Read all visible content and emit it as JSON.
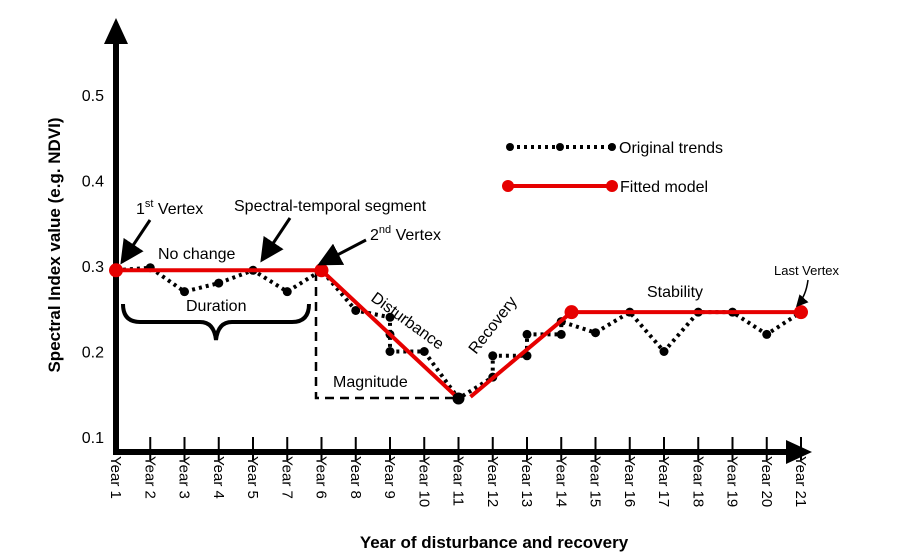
{
  "chart_data": {
    "type": "line",
    "title": "",
    "xlabel": "Year of disturbance and recovery",
    "ylabel": "Spectral Index value (e.g. NDVI)",
    "ylim": [
      0.1,
      0.55
    ],
    "yticks": [
      "0.1",
      "0.2",
      "0.3",
      "0.4",
      "0.5"
    ],
    "categories": [
      "Year 1",
      "Year 2",
      "Year 3",
      "Year 4",
      "Year 5",
      "Year 7",
      "Year 6",
      "Year 8",
      "Year 9",
      "Year 10",
      "Year 11",
      "Year 12",
      "Year 13",
      "Year 14",
      "Year 15",
      "Year 16",
      "Year 17",
      "Year 18",
      "Year 19",
      "Year 20",
      "Year 21"
    ],
    "legend": {
      "position": "top-right"
    },
    "series": [
      {
        "name": "Original trends",
        "color": "#000000",
        "style": "dotted",
        "points": [
          [
            0,
            0.295
          ],
          [
            1,
            0.298
          ],
          [
            2,
            0.27
          ],
          [
            3,
            0.28
          ],
          [
            4,
            0.295
          ],
          [
            5,
            0.27
          ],
          [
            6,
            0.295
          ],
          [
            7,
            0.248
          ],
          [
            8,
            0.24
          ],
          [
            8,
            0.22
          ],
          [
            8,
            0.2
          ],
          [
            9,
            0.2
          ],
          [
            10,
            0.145
          ],
          [
            11,
            0.17
          ],
          [
            11,
            0.195
          ],
          [
            12,
            0.195
          ],
          [
            12,
            0.22
          ],
          [
            13,
            0.22
          ],
          [
            13,
            0.235
          ],
          [
            14,
            0.222
          ],
          [
            15,
            0.246
          ],
          [
            16,
            0.2
          ],
          [
            17,
            0.246
          ],
          [
            18,
            0.246
          ],
          [
            19,
            0.22
          ],
          [
            20,
            0.246
          ]
        ]
      },
      {
        "name": "Fitted model",
        "color": "#e60000",
        "style": "solid",
        "points": [
          [
            0,
            0.295
          ],
          [
            6,
            0.295
          ],
          [
            10,
            0.145
          ],
          [
            13.3,
            0.246
          ],
          [
            20,
            0.246
          ]
        ]
      }
    ],
    "vertices": [
      [
        0,
        0.295
      ],
      [
        6,
        0.295
      ],
      [
        10,
        0.145
      ],
      [
        13.3,
        0.246
      ],
      [
        20,
        0.246
      ]
    ],
    "annotations": {
      "first_vertex": {
        "main": "1",
        "sup": "st",
        "rest": " Vertex"
      },
      "second_vertex": {
        "main": "2",
        "sup": "nd",
        "rest": " Vertex"
      },
      "segment": "Spectral-temporal segment",
      "no_change": "No change",
      "duration": "Duration",
      "disturbance": "Disturbance",
      "magnitude": "Magnitude",
      "recovery": "Recovery",
      "stability": "Stability",
      "last_vertex": "Last Vertex"
    }
  }
}
